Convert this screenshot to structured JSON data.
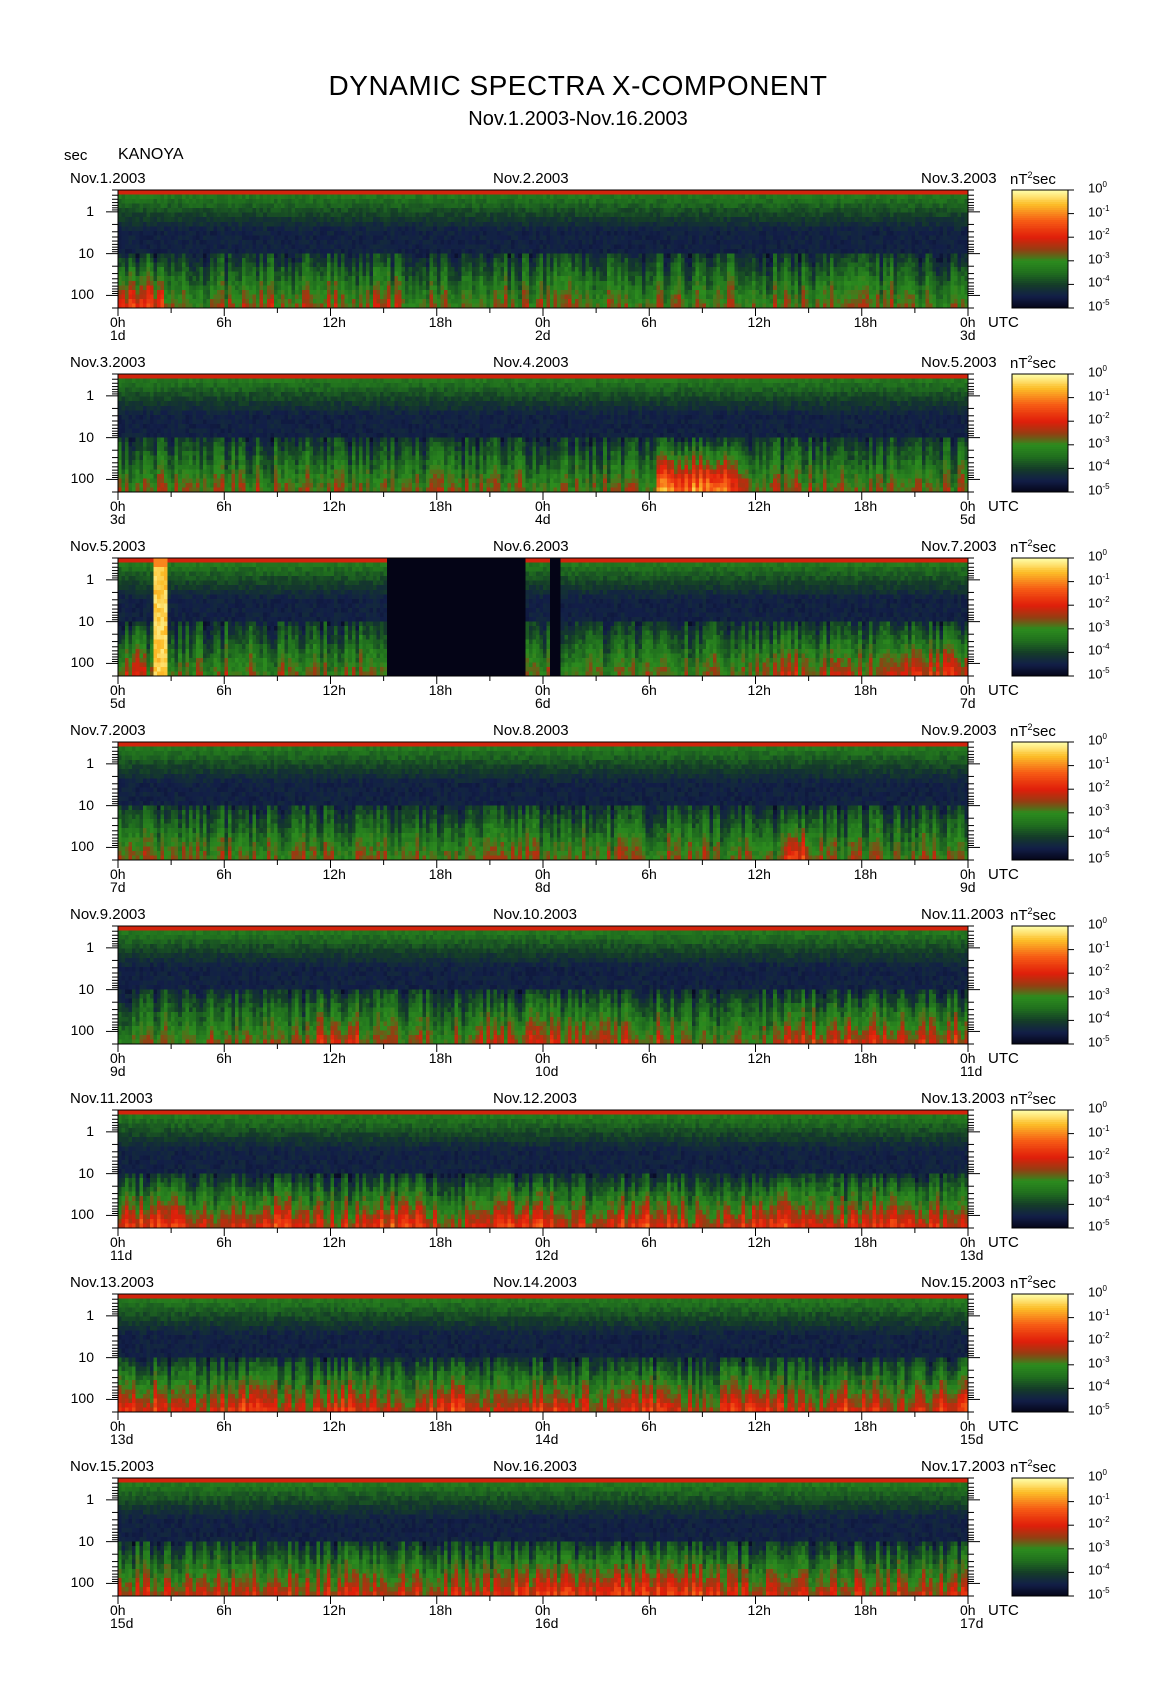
{
  "title": "DYNAMIC SPECTRA X-COMPONENT",
  "subtitle": "Nov.1.2003-Nov.16.2003",
  "y_unit": "sec",
  "station": "KANOYA",
  "cbar_unit_base": "nT",
  "cbar_unit_exp": "2",
  "cbar_unit_tail": "sec",
  "utc_label": "UTC",
  "y_ticks": [
    "1",
    "10",
    "100"
  ],
  "x_hours": [
    "0h",
    "6h",
    "12h",
    "18h",
    "0h",
    "6h",
    "12h",
    "18h",
    "0h"
  ],
  "cbar_base": "10",
  "cbar_exponents": [
    "0",
    "-1",
    "-2",
    "-3",
    "-4",
    "-5"
  ],
  "colors": {
    "background": "#ffffff",
    "low": "#000014",
    "mid": "#1e7a1e",
    "high": "#e01808",
    "peak": "#ffffa0"
  },
  "panels": [
    {
      "date_left": "Nov.1.2003",
      "date_mid": "Nov.2.2003",
      "date_right": "Nov.3.2003",
      "day_start": "1d",
      "day_mid": "2d",
      "day_end": "3d"
    },
    {
      "date_left": "Nov.3.2003",
      "date_mid": "Nov.4.2003",
      "date_right": "Nov.5.2003",
      "day_start": "3d",
      "day_mid": "4d",
      "day_end": "5d"
    },
    {
      "date_left": "Nov.5.2003",
      "date_mid": "Nov.6.2003",
      "date_right": "Nov.7.2003",
      "day_start": "5d",
      "day_mid": "6d",
      "day_end": "7d"
    },
    {
      "date_left": "Nov.7.2003",
      "date_mid": "Nov.8.2003",
      "date_right": "Nov.9.2003",
      "day_start": "7d",
      "day_mid": "8d",
      "day_end": "9d"
    },
    {
      "date_left": "Nov.9.2003",
      "date_mid": "Nov.10.2003",
      "date_right": "Nov.11.2003",
      "day_start": "9d",
      "day_mid": "10d",
      "day_end": "11d"
    },
    {
      "date_left": "Nov.11.2003",
      "date_mid": "Nov.12.2003",
      "date_right": "Nov.13.2003",
      "day_start": "11d",
      "day_mid": "12d",
      "day_end": "13d"
    },
    {
      "date_left": "Nov.13.2003",
      "date_mid": "Nov.14.2003",
      "date_right": "Nov.15.2003",
      "day_start": "13d",
      "day_mid": "14d",
      "day_end": "15d"
    },
    {
      "date_left": "Nov.15.2003",
      "date_mid": "Nov.16.2003",
      "date_right": "Nov.17.2003",
      "day_start": "15d",
      "day_mid": "16d",
      "day_end": "17d"
    }
  ],
  "chart_data": {
    "type": "heatmap",
    "title": "DYNAMIC SPECTRA X-COMPONENT",
    "subtitle": "Nov.1.2003-Nov.16.2003",
    "station": "KANOYA",
    "x_axis": "UTC hours, 48 h per panel (0h to 0h of day+2)",
    "y_axis": "period (sec), log scale",
    "ylim": [
      0.3,
      200
    ],
    "y_tick_values": [
      1,
      10,
      100
    ],
    "color_scale": {
      "unit": "nT^2 sec",
      "log10_range": [
        -5,
        0
      ]
    },
    "notable_features": [
      {
        "panel": 2,
        "hours": [
          30.2,
          34.5
        ],
        "period_range": [
          10,
          200
        ],
        "level_log10": -1.3
      },
      {
        "panel": 3,
        "hours": [
          0,
          1.5
        ],
        "period_range": [
          15,
          200
        ],
        "level_log10": -2.5
      },
      {
        "panel": 3,
        "hours": [
          2.0,
          2.6
        ],
        "period_range": [
          0.5,
          200
        ],
        "level_log10": -0.3
      },
      {
        "panel": 3,
        "hours": [
          15.2,
          22.8
        ],
        "data_gap": true
      },
      {
        "panel": 3,
        "hours": [
          24.4,
          24.9
        ],
        "data_gap": true
      },
      {
        "panel": 3,
        "hours": [
          43.5,
          48
        ],
        "period_range": [
          10,
          150
        ],
        "level_log10": -2.3
      },
      {
        "panel": 4,
        "hours": [
          37.5,
          39
        ],
        "period_range": [
          20,
          200
        ],
        "level_log10": -1.5
      },
      {
        "panel": 5,
        "hours": [
          11,
          13.5
        ],
        "period_range": [
          20,
          200
        ],
        "level_log10": -2
      },
      {
        "panel": 5,
        "hours": [
          43,
          47
        ],
        "period_range": [
          10,
          120
        ],
        "level_log10": -2.2
      },
      {
        "panel": 6,
        "hours": [
          0,
          48
        ],
        "period_range": [
          15,
          200
        ],
        "level_log10": -2.4
      },
      {
        "panel": 7,
        "hours": [
          0,
          48
        ],
        "period_range": [
          20,
          200
        ],
        "level_log10": -2.3
      },
      {
        "panel": 8,
        "hours": [
          22,
          48
        ],
        "period_range": [
          20,
          200
        ],
        "level_log10": -2.2
      }
    ]
  }
}
